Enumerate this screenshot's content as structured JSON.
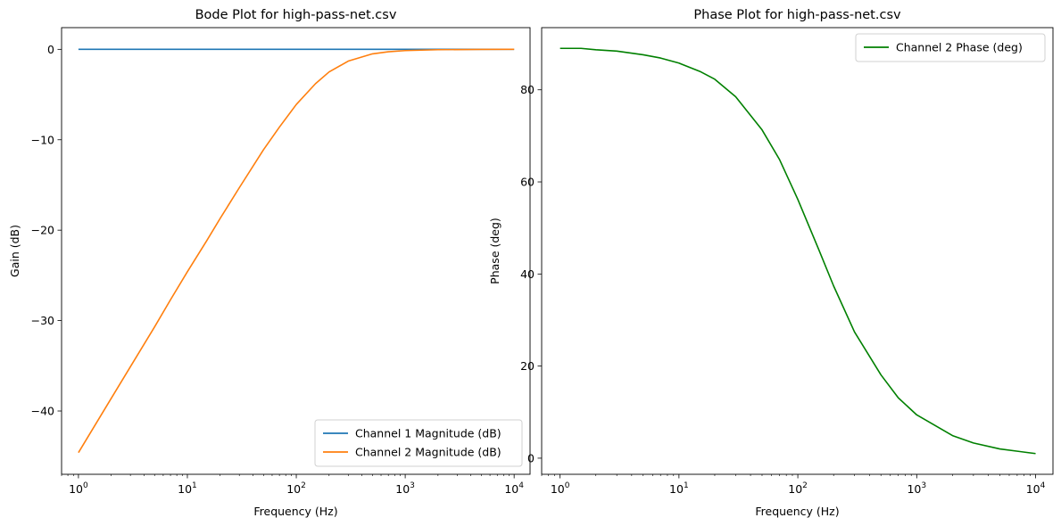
{
  "chart_data": [
    {
      "type": "line",
      "title": "Bode Plot for high-pass-net.csv",
      "xlabel": "Frequency (Hz)",
      "ylabel": "Gain (dB)",
      "xscale": "log",
      "xlim": [
        0.7,
        14000
      ],
      "ylim": [
        -47,
        2.4
      ],
      "xticks": [
        1,
        10,
        100,
        1000,
        10000
      ],
      "xtick_labels": [
        {
          "base": "10",
          "exp": "0"
        },
        {
          "base": "10",
          "exp": "1"
        },
        {
          "base": "10",
          "exp": "2"
        },
        {
          "base": "10",
          "exp": "3"
        },
        {
          "base": "10",
          "exp": "4"
        }
      ],
      "yticks": [
        0,
        -10,
        -20,
        -30,
        -40
      ],
      "ytick_labels": [
        "0",
        "−10",
        "−20",
        "−30",
        "−40"
      ],
      "legend": "lower right",
      "grid": false,
      "series": [
        {
          "name": "Channel 1 Magnitude (dB)",
          "color": "#1f77b4",
          "x": [
            1,
            2,
            5,
            10,
            20,
            50,
            100,
            200,
            500,
            1000,
            2000,
            5000,
            10000
          ],
          "y": [
            0,
            0,
            0,
            0,
            0,
            0,
            0,
            0,
            0,
            0,
            0,
            0,
            0
          ]
        },
        {
          "name": "Channel 2 Magnitude (dB)",
          "color": "#ff7f0e",
          "x": [
            1,
            2,
            3,
            5,
            7,
            10,
            15,
            20,
            30,
            50,
            70,
            100,
            150,
            200,
            300,
            500,
            700,
            1000,
            2000,
            5000,
            10000
          ],
          "y": [
            -44.6,
            -38.6,
            -35.1,
            -30.7,
            -27.7,
            -24.6,
            -21.2,
            -18.7,
            -15.3,
            -11.1,
            -8.6,
            -6.1,
            -3.8,
            -2.5,
            -1.3,
            -0.5,
            -0.27,
            -0.14,
            -0.04,
            -0.01,
            0
          ]
        }
      ]
    },
    {
      "type": "line",
      "title": "Phase Plot for high-pass-net.csv",
      "xlabel": "Frequency (Hz)",
      "ylabel": "Phase (deg)",
      "xscale": "log",
      "xlim": [
        0.7,
        14000
      ],
      "ylim": [
        -3.5,
        93.5
      ],
      "xticks": [
        1,
        10,
        100,
        1000,
        10000
      ],
      "xtick_labels": [
        {
          "base": "10",
          "exp": "0"
        },
        {
          "base": "10",
          "exp": "1"
        },
        {
          "base": "10",
          "exp": "2"
        },
        {
          "base": "10",
          "exp": "3"
        },
        {
          "base": "10",
          "exp": "4"
        }
      ],
      "yticks": [
        0,
        20,
        40,
        60,
        80
      ],
      "ytick_labels": [
        "0",
        "20",
        "40",
        "60",
        "80"
      ],
      "legend": "upper right",
      "grid": false,
      "series": [
        {
          "name": "Channel 2 Phase (deg)",
          "color": "#008000",
          "x": [
            1,
            1.5,
            2,
            3,
            5,
            7,
            10,
            15,
            20,
            30,
            50,
            70,
            100,
            150,
            200,
            300,
            500,
            700,
            1000,
            2000,
            3000,
            5000,
            10000
          ],
          "y": [
            89,
            89,
            88.7,
            88.4,
            87.6,
            86.9,
            85.8,
            84.0,
            82.3,
            78.5,
            71.3,
            64.9,
            56.2,
            45.3,
            37.4,
            27.4,
            18.1,
            13.1,
            9.4,
            4.9,
            3.3,
            2.0,
            1.0
          ]
        }
      ]
    }
  ]
}
